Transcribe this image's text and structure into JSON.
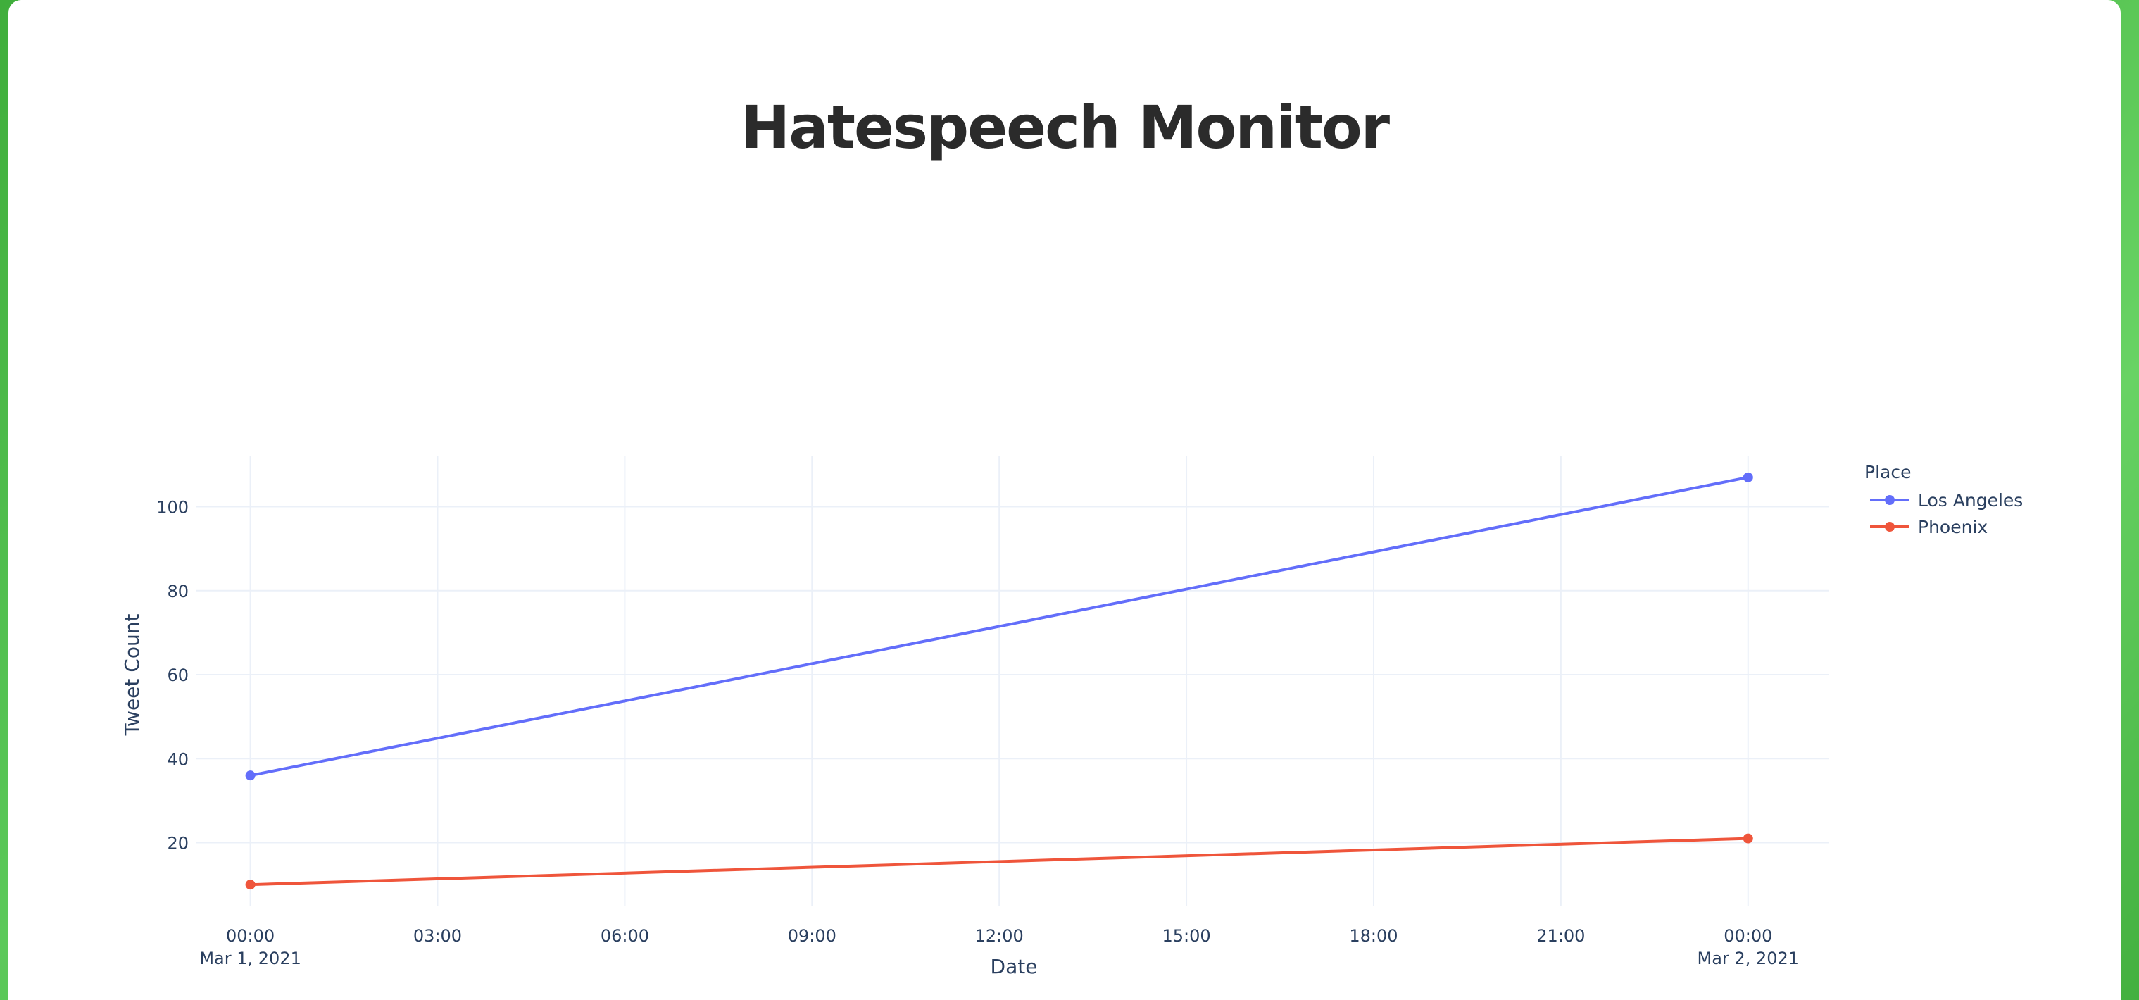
{
  "page": {
    "title": "Hatespeech Monitor"
  },
  "chart_data": {
    "type": "line",
    "xlabel": "Date",
    "ylabel": "Tweet Count",
    "legend_title": "Place",
    "legend_placement": "top-right",
    "grid": true,
    "x_ticks": [
      {
        "time": "00:00",
        "date": "Mar 1, 2021"
      },
      {
        "time": "03:00",
        "date": ""
      },
      {
        "time": "06:00",
        "date": ""
      },
      {
        "time": "09:00",
        "date": ""
      },
      {
        "time": "12:00",
        "date": ""
      },
      {
        "time": "15:00",
        "date": ""
      },
      {
        "time": "18:00",
        "date": ""
      },
      {
        "time": "21:00",
        "date": ""
      },
      {
        "time": "00:00",
        "date": "Mar 2, 2021"
      }
    ],
    "xlim": [
      "2021-02-28 23:21",
      "2021-03-02 01:18"
    ],
    "y_ticks": [
      20,
      40,
      60,
      80,
      100
    ],
    "ylim": [
      5,
      112
    ],
    "x": [
      "2021-03-01 00:00",
      "2021-03-02 00:00"
    ],
    "series": [
      {
        "name": "Los Angeles",
        "color": "#636efa",
        "values": [
          36,
          107
        ]
      },
      {
        "name": "Phoenix",
        "color": "#ef553b",
        "values": [
          10,
          21
        ]
      }
    ]
  }
}
